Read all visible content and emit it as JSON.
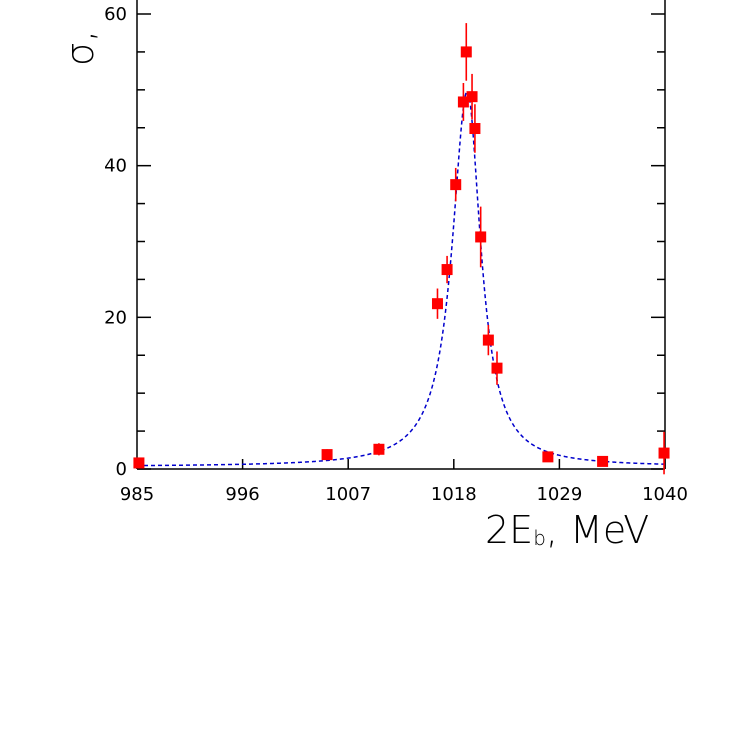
{
  "chart_data": {
    "type": "scatter",
    "xlabel": "2E",
    "xlabel_sub": "b",
    "xlabel_unit": ",  MeV",
    "ylabel": "σ,",
    "xlim": [
      985,
      1040
    ],
    "ylim": [
      0,
      60
    ],
    "x_ticks": [
      985,
      996,
      1007,
      1018,
      1029,
      1040
    ],
    "y_ticks": [
      0,
      20,
      40,
      60
    ],
    "grid": false,
    "colors": {
      "points": "#ff0000",
      "fit": "#0000cc"
    },
    "series": [
      {
        "type": "points",
        "points": [
          {
            "x": 985.2,
            "y": 0.8,
            "err": 0.5
          },
          {
            "x": 1004.8,
            "y": 1.9,
            "err": 0.7
          },
          {
            "x": 1010.2,
            "y": 2.6,
            "err": 0.8
          },
          {
            "x": 1016.3,
            "y": 21.8,
            "err": 2.0
          },
          {
            "x": 1017.3,
            "y": 26.3,
            "err": 1.8
          },
          {
            "x": 1018.2,
            "y": 37.5,
            "err": 2.2
          },
          {
            "x": 1019.0,
            "y": 48.4,
            "err": 2.5
          },
          {
            "x": 1019.3,
            "y": 55.0,
            "err": 3.8
          },
          {
            "x": 1019.9,
            "y": 49.1,
            "err": 3.0
          },
          {
            "x": 1020.2,
            "y": 44.9,
            "err": 3.2
          },
          {
            "x": 1020.8,
            "y": 30.6,
            "err": 4.0
          },
          {
            "x": 1021.6,
            "y": 17.0,
            "err": 2.0
          },
          {
            "x": 1022.5,
            "y": 13.3,
            "err": 2.2
          },
          {
            "x": 1027.8,
            "y": 1.6,
            "err": 0.5
          },
          {
            "x": 1033.5,
            "y": 1.0,
            "err": 0.6
          },
          {
            "x": 1039.9,
            "y": 2.1,
            "err": 2.8
          }
        ]
      },
      {
        "type": "fit",
        "peak_x": 1019.4,
        "peak_y": 49.8,
        "width_lo": 1.9,
        "width_hi": 1.7,
        "baseline": 0.3
      }
    ]
  }
}
